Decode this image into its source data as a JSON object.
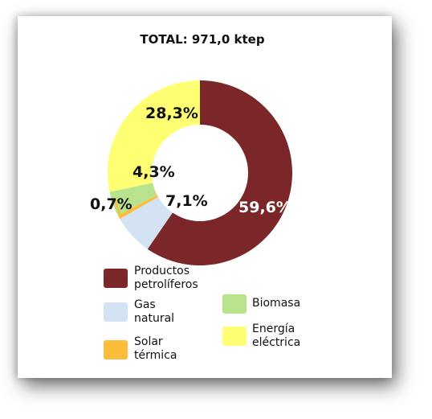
{
  "chart_data": {
    "type": "pie",
    "title": "TOTAL: 971,0 ktep",
    "slices": [
      {
        "name": "Productos petrolíferos",
        "value": 59.6,
        "label": "59,6%",
        "color": "#7b2628"
      },
      {
        "name": "Gas natural",
        "value": 7.1,
        "label": "7,1%",
        "color": "#d4e3f4"
      },
      {
        "name": "Solar térmica",
        "value": 0.7,
        "label": "0,7%",
        "color": "#fdbc3a"
      },
      {
        "name": "Biomasa",
        "value": 4.3,
        "label": "4,3%",
        "color": "#b8e28b"
      },
      {
        "name": "Energía eléctrica",
        "value": 28.3,
        "label": "28,3%",
        "color": "#ffff74"
      }
    ],
    "legend": [
      {
        "line1": "Productos",
        "line2": "petrolíferos",
        "color": "#7b2628"
      },
      {
        "line1": "Gas",
        "line2": "natural",
        "color": "#d4e3f4"
      },
      {
        "line1": "Solar",
        "line2": "térmica",
        "color": "#fdbc3a"
      },
      {
        "line1": "Biomasa",
        "line2": "",
        "color": "#b8e28b"
      },
      {
        "line1": "Energía",
        "line2": "eléctrica",
        "color": "#ffff74"
      }
    ],
    "legend_placement": "bottom"
  }
}
